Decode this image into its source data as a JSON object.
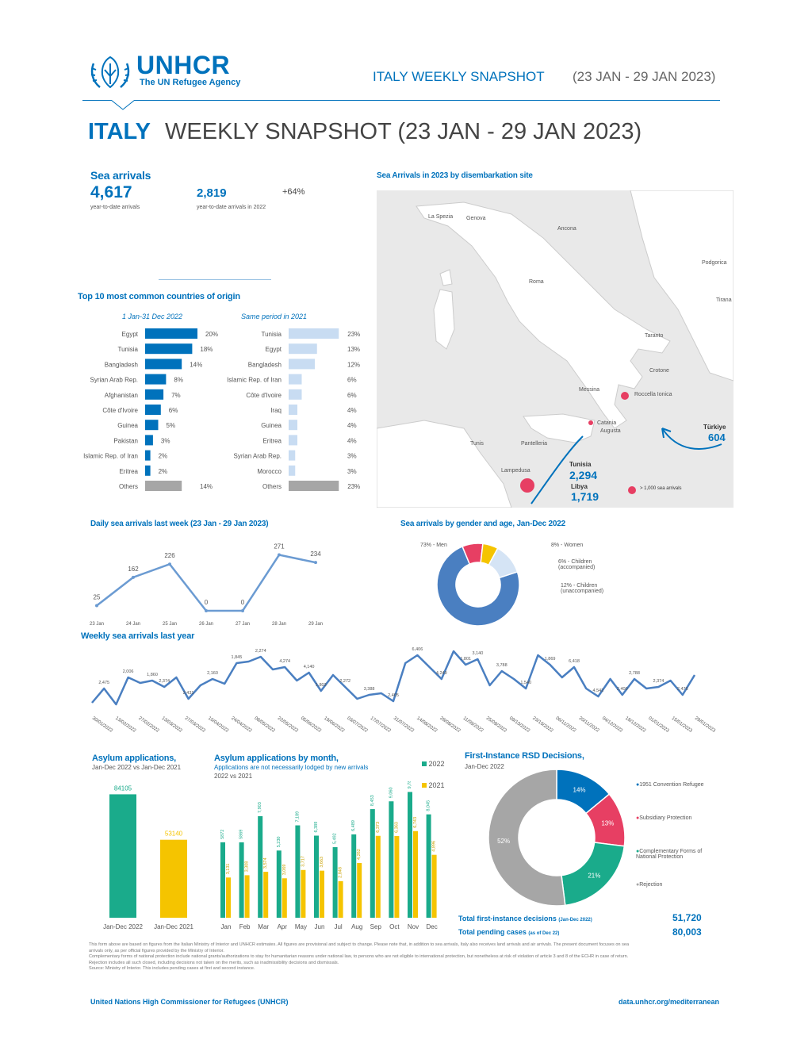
{
  "header": {
    "logo_name": "UNHCR",
    "logo_tagline": "The UN Refugee Agency",
    "snapshot_title": "ITALY WEEKLY SNAPSHOT",
    "snapshot_dates": "(23 JAN - 29 JAN 2023)",
    "page_title_country": "ITALY",
    "page_title_rest": "WEEKLY SNAPSHOT (23 JAN - 29 JAN 2023)"
  },
  "sea_arrivals": {
    "title": "Sea arrivals",
    "ytd_value": "4,617",
    "ytd_label": "year-to-date arrivals",
    "ytd2022_value": "2,819",
    "ytd2022_label": "year-to-date arrivals in 2022",
    "change": "+64%"
  },
  "top10": {
    "title": "Top 10 most common countries of origin",
    "col1_title": "1 Jan-31 Dec 2022",
    "col2_title": "Same period in 2021",
    "col1": [
      {
        "label": "Egypt",
        "value": 20,
        "text": "20%"
      },
      {
        "label": "Tunisia",
        "value": 18,
        "text": "18%"
      },
      {
        "label": "Bangladesh",
        "value": 14,
        "text": "14%"
      },
      {
        "label": "Syrian Arab Rep.",
        "value": 8,
        "text": "8%"
      },
      {
        "label": "Afghanistan",
        "value": 7,
        "text": "7%"
      },
      {
        "label": "Côte d'Ivoire",
        "value": 6,
        "text": "6%"
      },
      {
        "label": "Guinea",
        "value": 5,
        "text": "5%"
      },
      {
        "label": "Pakistan",
        "value": 3,
        "text": "3%"
      },
      {
        "label": "Islamic Rep. of Iran",
        "value": 2,
        "text": "2%"
      },
      {
        "label": "Eritrea",
        "value": 2,
        "text": "2%"
      },
      {
        "label": "Others",
        "value": 14,
        "text": "14%"
      }
    ],
    "col2": [
      {
        "label": "Tunisia",
        "value": 23,
        "text": "23%"
      },
      {
        "label": "Egypt",
        "value": 13,
        "text": "13%"
      },
      {
        "label": "Bangladesh",
        "value": 12,
        "text": "12%"
      },
      {
        "label": "Islamic Rep. of Iran",
        "value": 6,
        "text": "6%"
      },
      {
        "label": "Côte d'Ivoire",
        "value": 6,
        "text": "6%"
      },
      {
        "label": "Iraq",
        "value": 4,
        "text": "4%"
      },
      {
        "label": "Guinea",
        "value": 4,
        "text": "4%"
      },
      {
        "label": "Eritrea",
        "value": 4,
        "text": "4%"
      },
      {
        "label": "Syrian Arab Rep.",
        "value": 3,
        "text": "3%"
      },
      {
        "label": "Morocco",
        "value": 3,
        "text": "3%"
      },
      {
        "label": "Others",
        "value": 23,
        "text": "23%"
      }
    ]
  },
  "map": {
    "title": "Sea Arrivals in 2023 by disembarkation site",
    "places": [
      "La Spezia",
      "Genova",
      "Ancona",
      "Roma",
      "Taranto",
      "Crotone",
      "Messina",
      "Roccella Ionica",
      "Catania",
      "Augusta",
      "Tunis",
      "Pantelleria",
      "Lampedusa",
      "Podgorica",
      "Tirana"
    ],
    "tunisia_label": "Tunisia",
    "tunisia_value": "2,294",
    "libya_label": "Libya",
    "libya_value": "1,719",
    "turkiye_label": "Türkiye",
    "turkiye_value": "604",
    "legend": "> 1,000 sea arrivals"
  },
  "daily": {
    "title": "Daily sea arrivals last week (23 Jan - 29 Jan 2023)",
    "x": [
      "23 Jan",
      "24 Jan",
      "25 Jan",
      "26 Jan",
      "27 Jan",
      "28 Jan",
      "29 Jan"
    ],
    "y": [
      25,
      162,
      226,
      0,
      0,
      271,
      234
    ]
  },
  "gender": {
    "title": "Sea arrivals by gender and age, Jan-Dec 2022",
    "slices": [
      {
        "label": "73% - Men",
        "value": 73,
        "color": "#4a7fc1"
      },
      {
        "label": "8% - Women",
        "value": 8,
        "color": "#e73f63"
      },
      {
        "label": "6% - Children (accompanied)",
        "value": 6,
        "color": "#f5c400"
      },
      {
        "label": "12% - Children (unaccompanied)",
        "value": 12,
        "color": "#d5e4f5"
      }
    ]
  },
  "weekly": {
    "title": "Weekly sea arrivals last year",
    "x_labels": [
      "30/01/2022",
      "13/02/2022",
      "27/02/2022",
      "13/03/2022",
      "27/03/2022",
      "10/04/2022",
      "24/04/2022",
      "08/05/2022",
      "22/05/2022",
      "05/06/2022",
      "19/06/2022",
      "03/07/2022",
      "17/07/2022",
      "31/07/2022",
      "14/08/2022",
      "28/08/2022",
      "11/09/2022",
      "25/09/2022",
      "09/10/2022",
      "23/10/2022",
      "06/11/2022",
      "20/11/2022",
      "04/12/2022",
      "18/12/2022",
      "01/01/2023",
      "15/01/2023",
      "29/01/2023"
    ],
    "point_labels": [
      "2,475",
      "2,006",
      "1,860",
      "2,374",
      "2,431",
      "2,160",
      "1,845",
      "2,274",
      "4,274",
      "4,140",
      "1,803",
      "2,272",
      "3,388",
      "2,405",
      "6,406",
      "4,249",
      "1,801",
      "3,140",
      "3,788",
      "1,540",
      "1,869",
      "6,418",
      "4,542",
      "2,400",
      "2,788",
      "2,374",
      "2,476"
    ]
  },
  "asylum": {
    "title": "Asylum applications,",
    "subtitle": "Jan-Dec 2022 vs Jan-Dec 2021",
    "bars": [
      {
        "label": "Jan-Dec 2022",
        "value": 84105,
        "text": "84105",
        "color": "#1aab8b"
      },
      {
        "label": "Jan-Dec 2021",
        "value": 53140,
        "text": "53140",
        "color": "#f5c400"
      }
    ]
  },
  "asylum_month": {
    "title": "Asylum applications by month,",
    "subtitle": "Applications are not necessarily lodged by new arrivals",
    "subtitle2": "2022 vs 2021",
    "legend_2022": "2022",
    "legend_2021": "2021",
    "months": [
      "Jan",
      "Feb",
      "Mar",
      "Apr",
      "May",
      "Jun",
      "Jul",
      "Aug",
      "Sep",
      "Oct",
      "Nov",
      "Dec"
    ],
    "v2022": [
      5872,
      5869,
      7903,
      5230,
      7189,
      6389,
      5492,
      6489,
      8453,
      9060,
      9789,
      8045
    ],
    "v2021": [
      3131,
      3308,
      3574,
      3069,
      3717,
      3663,
      2848,
      4262,
      6373,
      6363,
      6743,
      4896
    ],
    "t2022": [
      "5872",
      "5869",
      "7,903",
      "5,230",
      "7,189",
      "6,389",
      "5,492",
      "6,489",
      "8,453",
      "9,060",
      "9,789",
      "8,045"
    ],
    "t2021": [
      "3,131",
      "3,308",
      "3,574",
      "3,069",
      "3,717",
      "3,663",
      "2,848",
      "4,262",
      "6,373",
      "6,363",
      "6,743",
      "4,896"
    ]
  },
  "rsd": {
    "title": "First-Instance RSD Decisions,",
    "subtitle": "Jan-Dec 2022",
    "slices": [
      {
        "label": "1951 Convention Refugee",
        "value": 14,
        "text": "14%",
        "color": "#0072bc"
      },
      {
        "label": "Subsidiary Protection",
        "value": 13,
        "text": "13%",
        "color": "#e73f63"
      },
      {
        "label": "Complementary Forms of National Protection",
        "value": 21,
        "text": "21%",
        "color": "#1aab8b"
      },
      {
        "label": "Rejection",
        "value": 52,
        "text": "52%",
        "color": "#a6a6a6"
      }
    ],
    "total_decisions_label": "Total first-instance decisions",
    "total_decisions_note": "(Jan-Dec 2022)",
    "total_decisions_value": "51,720",
    "total_pending_label": "Total pending cases",
    "total_pending_note": "(as of Dec 22)",
    "total_pending_value": "80,003"
  },
  "footnotes": [
    "This form above are based on figures from the Italian Ministry of Interior and UNHCR estimates. All figures are provisional and subject to change. Please note that, in addition to sea arrivals, Italy also receives land arrivals and air arrivals. The present document focuses on sea arrivals only, as per official figures provided by the Ministry of Interior.",
    "Complementary forms of national protection include national grants/authorizations to stay for humanitarian reasons under national law, to persons who are not eligible to international protection, but nonetheless at risk of violation of article 3 and 8 of the ECHR in case of return.",
    "Rejection includes all such closed, including decisions not taken on the merits, such as inadmissibility decisions and dismissals.",
    "Source: Ministry of Interior. This includes pending cases at first and second instance."
  ],
  "footer": {
    "left": "United Nations High Commissioner for Refugees (UNHCR)",
    "right": "data.unhcr.org/mediterranean"
  }
}
